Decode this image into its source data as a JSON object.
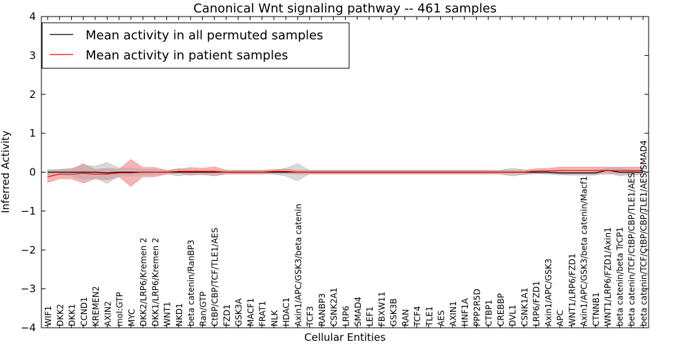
{
  "chart_data": {
    "type": "line",
    "title": "Canonical Wnt signaling pathway -- 461 samples",
    "xlabel": "Cellular Entities",
    "ylabel": "Inferred Activity",
    "ylim": [
      -4,
      4
    ],
    "yticks": [
      -4,
      -3,
      -2,
      -1,
      0,
      1,
      2,
      3,
      4
    ],
    "ytick_labels": [
      "−4",
      "−3",
      "−2",
      "−1",
      "0",
      "1",
      "2",
      "3",
      "4"
    ],
    "legend_position": "top-left",
    "categories": [
      "WIF1",
      "DKK2",
      "DKK1",
      "CCND1",
      "KREMEN2",
      "AXIN2",
      "mol:GTP",
      "MYC",
      "DKK2/LRP6/Kremen 2",
      "DKK1/LRP6/Kremen 2",
      "WNT1",
      "NKD1",
      "beta catenin/RanBP3",
      "Ran/GTP",
      "CtBP/CBP/TCF/TLE1/AES",
      "FZD1",
      "GSK3A",
      "MACF1",
      "FRAT1",
      "NLK",
      "HDAC1",
      "Axin1/APC/GSK3/beta catenin",
      "TCF3",
      "RANBP3",
      "CSNK2A1",
      "LRP6",
      "SMAD4",
      "LEF1",
      "FBXW11",
      "GSK3B",
      "RAN",
      "TCF4",
      "TLE1",
      "AES",
      "AXIN1",
      "HNF1A",
      "PPP2R5D",
      "CTBP1",
      "CREBBP",
      "DVL1",
      "CSNK1A1",
      "LRP6/FZD1",
      "Axin1/APC/GSK3",
      "APC",
      "WNT1/LRP6/FZD1",
      "Axin1/APC/GSK3/beta catenin/Macf1",
      "CTNNB1",
      "WNT1/LRP6/FZD1/Axin1",
      "beta catenin/beta TrCP1",
      "beta catenin/TCF/CtBP/CBP/TLE1/AES",
      "beta catenin/TCF/CtBP/CBP/TLE1/AES/SMAD4"
    ],
    "series": [
      {
        "name": "Mean activity in all permuted samples",
        "color": "#000000",
        "band_color": "#aaaaaa",
        "values": [
          0,
          0,
          0,
          0,
          0,
          -0.02,
          0,
          0,
          0,
          0,
          0,
          0,
          0,
          0,
          0,
          0,
          0,
          0,
          0,
          0,
          0,
          0,
          0,
          0,
          0,
          0,
          0,
          0,
          0,
          0,
          0,
          0,
          0,
          0,
          0,
          0,
          0,
          0,
          0,
          0,
          0,
          0,
          0,
          -0.02,
          -0.02,
          -0.02,
          -0.02,
          0.05,
          0,
          0,
          0
        ],
        "band": [
          0.07,
          0.07,
          0.1,
          0.18,
          0.15,
          0.27,
          0.1,
          0.1,
          0.07,
          0.07,
          0.04,
          0.1,
          0.05,
          0.05,
          0.05,
          0.04,
          0.04,
          0.04,
          0.04,
          0.05,
          0.1,
          0.22,
          0.04,
          0.04,
          0.04,
          0.04,
          0.04,
          0.04,
          0.04,
          0.04,
          0.04,
          0.04,
          0.04,
          0.04,
          0.04,
          0.04,
          0.04,
          0.04,
          0.05,
          0.1,
          0.06,
          0.04,
          0.05,
          0.05,
          0.06,
          0.06,
          0.06,
          0.05,
          0.1,
          0.06,
          0.06
        ]
      },
      {
        "name": "Mean activity in patient samples",
        "color": "#ff0000",
        "band_color": "#f08080",
        "values": [
          -0.12,
          -0.05,
          -0.05,
          -0.03,
          -0.05,
          -0.05,
          -0.02,
          -0.02,
          0,
          0,
          0,
          0.02,
          0.02,
          0.02,
          0.02,
          0,
          0,
          0,
          0,
          0.02,
          0.02,
          0,
          0,
          0,
          0,
          0,
          0,
          0,
          0,
          0,
          0,
          0,
          0,
          0,
          0,
          0,
          0,
          0,
          0,
          0,
          0,
          0.03,
          0.03,
          0.04,
          0.04,
          0.04,
          0.04,
          0.04,
          0.04,
          0.04,
          0.04
        ],
        "band": [
          0.15,
          0.12,
          0.12,
          0.25,
          0.12,
          0.15,
          0.1,
          0.35,
          0.12,
          0.12,
          0.05,
          0.05,
          0.1,
          0.08,
          0.12,
          0.05,
          0.05,
          0.05,
          0.05,
          0.05,
          0.06,
          0.05,
          0.05,
          0.05,
          0.05,
          0.05,
          0.05,
          0.05,
          0.05,
          0.05,
          0.05,
          0.05,
          0.05,
          0.05,
          0.05,
          0.05,
          0.05,
          0.05,
          0.05,
          0.05,
          0.05,
          0.06,
          0.07,
          0.09,
          0.09,
          0.09,
          0.09,
          0.09,
          0.09,
          0.09,
          0.09
        ]
      }
    ]
  }
}
